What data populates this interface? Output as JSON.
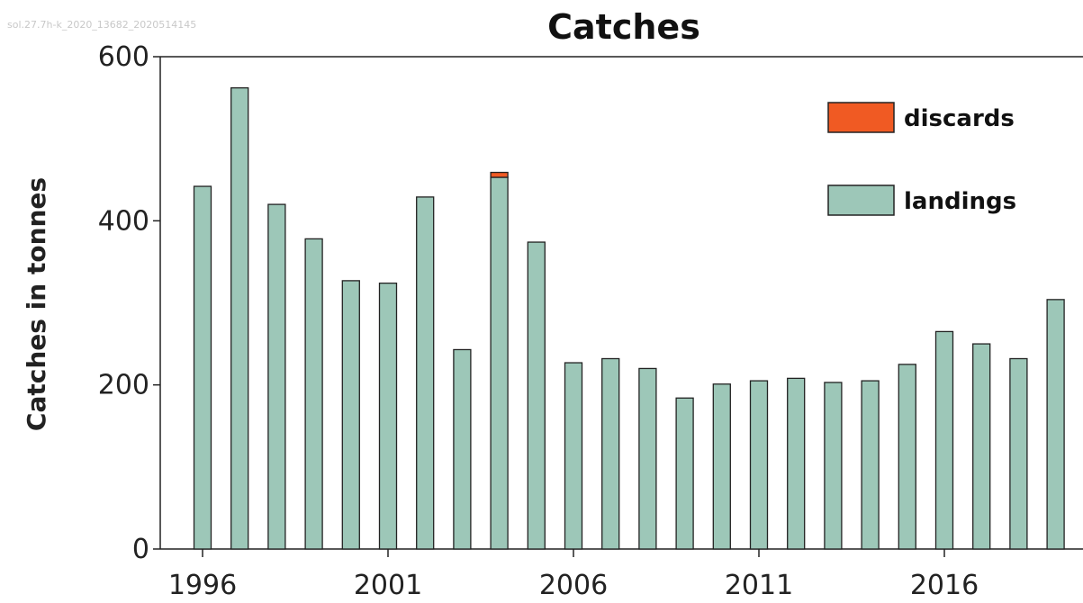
{
  "watermark": "sol.27.7h-k_2020_13682_2020514145",
  "chart_data": {
    "type": "bar",
    "stacked": true,
    "title": "Catches",
    "xlabel": "",
    "ylabel": "Catches in tonnes",
    "ylim": [
      0,
      600
    ],
    "yticks": [
      0,
      200,
      400,
      600
    ],
    "xticks": [
      "1996",
      "2001",
      "2006",
      "2011",
      "2016"
    ],
    "categories": [
      "1996",
      "1997",
      "1998",
      "1999",
      "2000",
      "2001",
      "2002",
      "2003",
      "2004",
      "2005",
      "2006",
      "2007",
      "2008",
      "2009",
      "2010",
      "2011",
      "2012",
      "2013",
      "2014",
      "2015",
      "2016",
      "2017",
      "2018",
      "2019"
    ],
    "series": [
      {
        "name": "landings",
        "color": "#9dc7b8",
        "values": [
          442,
          562,
          420,
          378,
          327,
          324,
          429,
          243,
          453,
          374,
          227,
          232,
          220,
          184,
          201,
          205,
          208,
          203,
          205,
          225,
          265,
          250,
          232,
          304
        ]
      },
      {
        "name": "discards",
        "color": "#f05a23",
        "values": [
          0,
          0,
          0,
          0,
          0,
          0,
          0,
          0,
          6,
          0,
          0,
          0,
          0,
          0,
          0,
          0,
          0,
          0,
          0,
          0,
          0,
          0,
          0,
          0
        ]
      }
    ],
    "legend": {
      "position": "top-right",
      "order": [
        "discards",
        "landings"
      ]
    },
    "grid": false
  }
}
